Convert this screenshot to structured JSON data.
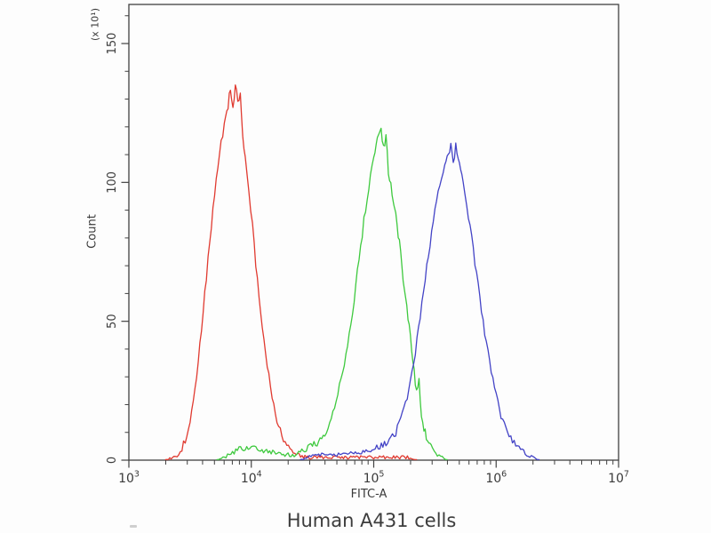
{
  "page": {
    "background": "#fdfdfd"
  },
  "title": "Human A431 cells",
  "chart_data": {
    "type": "line",
    "subtype": "flow-cytometry-histogram-overlay",
    "title": "Human A431 cells",
    "xlabel": "FITC-A",
    "ylabel": "Count",
    "y_axis_multiplier": "(x 10¹)",
    "x_scale": "log10",
    "xlim_log10": [
      3,
      7
    ],
    "ylim": [
      0,
      164
    ],
    "y_major_ticks": [
      0,
      50,
      100,
      150
    ],
    "y_minor_ticks": [
      10,
      20,
      30,
      40,
      60,
      70,
      80,
      90,
      110,
      120,
      130,
      140,
      160
    ],
    "x_major_tick_exponents": [
      3,
      4,
      5,
      6,
      7
    ],
    "x_minor_tick_multipliers": [
      2,
      3,
      4,
      5,
      6,
      7,
      8,
      9
    ],
    "grid": false,
    "legend": "none",
    "frame_color": "#414141",
    "text_color": "#3a3a3a",
    "series": [
      {
        "name": "red",
        "color": "#e03a30",
        "seed": 7,
        "noise": 1.6,
        "peak": {
          "x_log10": 3.88,
          "count": 136
        },
        "points": [
          [
            3.3,
            0
          ],
          [
            3.38,
            1
          ],
          [
            3.42,
            3
          ],
          [
            3.46,
            7
          ],
          [
            3.5,
            14
          ],
          [
            3.54,
            26
          ],
          [
            3.58,
            42
          ],
          [
            3.62,
            60
          ],
          [
            3.66,
            78
          ],
          [
            3.7,
            95
          ],
          [
            3.74,
            110
          ],
          [
            3.78,
            122
          ],
          [
            3.81,
            128
          ],
          [
            3.83,
            134
          ],
          [
            3.85,
            126
          ],
          [
            3.87,
            136
          ],
          [
            3.89,
            128
          ],
          [
            3.91,
            131
          ],
          [
            3.93,
            117
          ],
          [
            3.95,
            110
          ],
          [
            3.98,
            98
          ],
          [
            4.01,
            84
          ],
          [
            4.05,
            64
          ],
          [
            4.09,
            48
          ],
          [
            4.13,
            34
          ],
          [
            4.17,
            23
          ],
          [
            4.21,
            14
          ],
          [
            4.25,
            9
          ],
          [
            4.29,
            5
          ],
          [
            4.33,
            3
          ],
          [
            4.38,
            2
          ],
          [
            4.45,
            1
          ],
          [
            4.6,
            1
          ],
          [
            4.8,
            1
          ],
          [
            5.0,
            1
          ],
          [
            5.15,
            1
          ],
          [
            5.3,
            1
          ],
          [
            5.35,
            0
          ]
        ]
      },
      {
        "name": "green",
        "color": "#3ec93e",
        "seed": 13,
        "noise": 1.5,
        "peak": {
          "x_log10": 5.06,
          "count": 120
        },
        "points": [
          [
            3.72,
            0
          ],
          [
            3.78,
            1
          ],
          [
            3.82,
            2
          ],
          [
            3.86,
            3
          ],
          [
            3.9,
            4
          ],
          [
            3.95,
            4
          ],
          [
            4.0,
            4
          ],
          [
            4.05,
            4
          ],
          [
            4.1,
            3
          ],
          [
            4.15,
            3
          ],
          [
            4.2,
            3
          ],
          [
            4.25,
            2
          ],
          [
            4.3,
            2
          ],
          [
            4.35,
            2
          ],
          [
            4.4,
            3
          ],
          [
            4.45,
            4
          ],
          [
            4.5,
            5
          ],
          [
            4.55,
            7
          ],
          [
            4.6,
            10
          ],
          [
            4.64,
            14
          ],
          [
            4.68,
            19
          ],
          [
            4.72,
            26
          ],
          [
            4.76,
            35
          ],
          [
            4.8,
            46
          ],
          [
            4.84,
            58
          ],
          [
            4.88,
            72
          ],
          [
            4.92,
            86
          ],
          [
            4.96,
            99
          ],
          [
            5.0,
            109
          ],
          [
            5.03,
            115
          ],
          [
            5.06,
            120
          ],
          [
            5.08,
            112
          ],
          [
            5.1,
            116
          ],
          [
            5.12,
            104
          ],
          [
            5.15,
            96
          ],
          [
            5.18,
            88
          ],
          [
            5.21,
            78
          ],
          [
            5.24,
            66
          ],
          [
            5.27,
            55
          ],
          [
            5.3,
            44
          ],
          [
            5.33,
            32
          ],
          [
            5.35,
            24
          ],
          [
            5.37,
            28
          ],
          [
            5.39,
            16
          ],
          [
            5.42,
            10
          ],
          [
            5.45,
            6
          ],
          [
            5.48,
            4
          ],
          [
            5.52,
            2
          ],
          [
            5.56,
            1
          ],
          [
            5.6,
            0
          ]
        ]
      },
      {
        "name": "blue",
        "color": "#4343c6",
        "seed": 21,
        "noise": 1.2,
        "peak": {
          "x_log10": 5.67,
          "count": 113
        },
        "points": [
          [
            4.4,
            0
          ],
          [
            4.45,
            1
          ],
          [
            4.55,
            2
          ],
          [
            4.65,
            2
          ],
          [
            4.75,
            2
          ],
          [
            4.85,
            3
          ],
          [
            4.95,
            3
          ],
          [
            5.0,
            4
          ],
          [
            5.05,
            5
          ],
          [
            5.1,
            6
          ],
          [
            5.14,
            8
          ],
          [
            5.18,
            10
          ],
          [
            5.22,
            14
          ],
          [
            5.26,
            20
          ],
          [
            5.3,
            28
          ],
          [
            5.34,
            39
          ],
          [
            5.38,
            52
          ],
          [
            5.42,
            65
          ],
          [
            5.46,
            78
          ],
          [
            5.5,
            90
          ],
          [
            5.54,
            100
          ],
          [
            5.58,
            107
          ],
          [
            5.61,
            111
          ],
          [
            5.63,
            113
          ],
          [
            5.65,
            107
          ],
          [
            5.67,
            113
          ],
          [
            5.7,
            107
          ],
          [
            5.73,
            100
          ],
          [
            5.76,
            92
          ],
          [
            5.8,
            80
          ],
          [
            5.84,
            67
          ],
          [
            5.88,
            54
          ],
          [
            5.92,
            42
          ],
          [
            5.96,
            32
          ],
          [
            6.0,
            23
          ],
          [
            6.04,
            16
          ],
          [
            6.08,
            11
          ],
          [
            6.12,
            8
          ],
          [
            6.16,
            5
          ],
          [
            6.2,
            4
          ],
          [
            6.25,
            2
          ],
          [
            6.3,
            1
          ],
          [
            6.35,
            0
          ]
        ]
      }
    ]
  }
}
